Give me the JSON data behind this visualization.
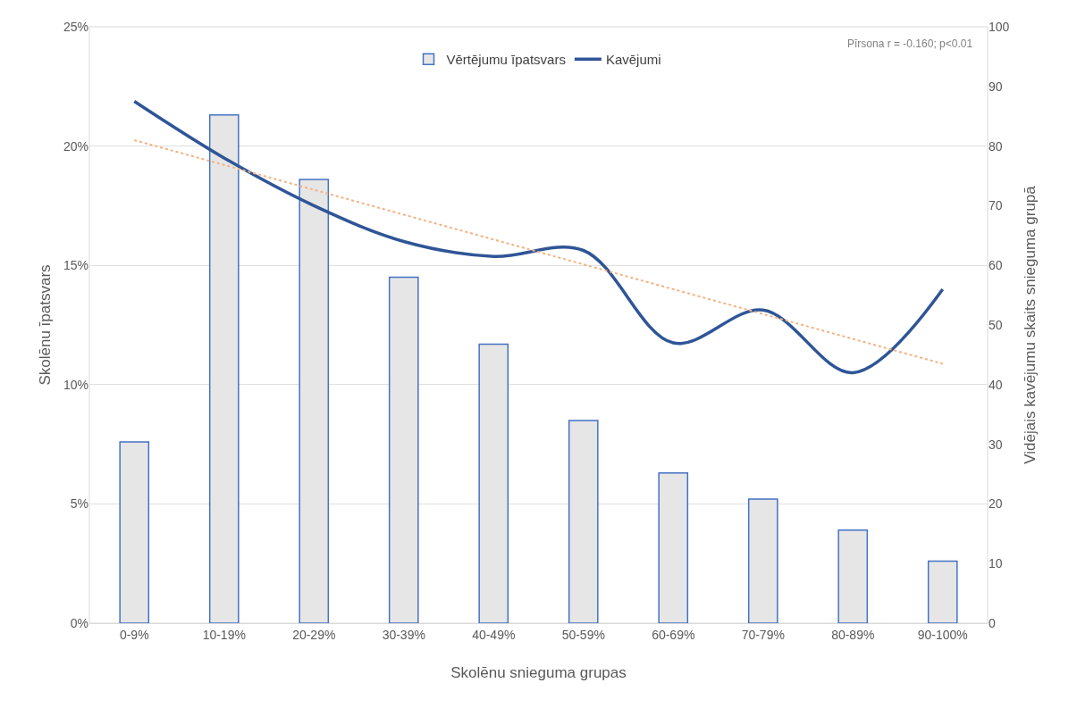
{
  "chart_data": {
    "type": "bar",
    "xlabel": "Skolēnu snieguma grupas",
    "ylabel": "Skolēnu īpatsvars",
    "y2label": "Vidējais kavējumu skaits snieguma grupā",
    "categories": [
      "0-9%",
      "10-19%",
      "20-29%",
      "30-39%",
      "40-49%",
      "50-59%",
      "60-69%",
      "70-79%",
      "80-89%",
      "90-100%"
    ],
    "series": [
      {
        "name": "Vērtējumu īpatsvars",
        "color": "#e6e6e6",
        "values": [
          7.6,
          21.3,
          18.6,
          14.5,
          11.7,
          8.5,
          6.3,
          5.2,
          3.9,
          2.6
        ]
      },
      {
        "name": "Kavējumi",
        "type": "line",
        "axis": "y2",
        "color": "#2f5597",
        "line_style": "solid",
        "values": [
          87.5,
          78,
          70,
          64,
          61.5,
          62.5,
          47,
          52.5,
          42,
          56
        ]
      },
      {
        "type": "line",
        "axis": "y2",
        "color": "#f4b183",
        "line_style": "dotted",
        "x": [
          "0-9%",
          "90-100%"
        ],
        "values": [
          81,
          43.5
        ]
      }
    ],
    "ylim": [
      0,
      25
    ],
    "yticks": [
      {
        "value": 0,
        "label": "0%"
      },
      {
        "value": 5,
        "label": "5%"
      },
      {
        "value": 10,
        "label": "10%"
      },
      {
        "value": 15,
        "label": "15%"
      },
      {
        "value": 20,
        "label": "20%"
      },
      {
        "value": 25,
        "label": "25%"
      }
    ],
    "y2lim": [
      0,
      100
    ],
    "y2ticks": [
      0,
      10,
      20,
      30,
      40,
      50,
      60,
      70,
      80,
      90,
      100
    ],
    "grid": "y",
    "legend": "top",
    "marker": "none",
    "annotations": [
      "Pīrsona r = -0.160; p<0.01"
    ]
  }
}
